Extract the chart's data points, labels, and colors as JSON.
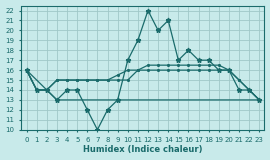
{
  "xlabel": "Humidex (Indice chaleur)",
  "bg_color": "#c8eaea",
  "grid_color": "#a0c8c8",
  "line_color": "#1a6b6b",
  "xlim": [
    -0.5,
    23.5
  ],
  "ylim": [
    10,
    22.5
  ],
  "xticks": [
    0,
    1,
    2,
    3,
    4,
    5,
    6,
    7,
    8,
    9,
    10,
    11,
    12,
    13,
    14,
    15,
    16,
    17,
    18,
    19,
    20,
    21,
    22,
    23
  ],
  "yticks": [
    10,
    11,
    12,
    13,
    14,
    15,
    16,
    17,
    18,
    19,
    20,
    21,
    22
  ],
  "line1_x": [
    0,
    1,
    2,
    3,
    4,
    5,
    6,
    7,
    8,
    9,
    10,
    11,
    12,
    13,
    14,
    15,
    16,
    17,
    18,
    19,
    20,
    21,
    22,
    23
  ],
  "line1_y": [
    16,
    14,
    14,
    15,
    15,
    15,
    15,
    15,
    15,
    15,
    15,
    16,
    16,
    16,
    16,
    16,
    16,
    16,
    16,
    16,
    16,
    15,
    14,
    13
  ],
  "line2_x": [
    0,
    1,
    2,
    3,
    4,
    5,
    6,
    7,
    8,
    9,
    10,
    11,
    12,
    13,
    14,
    15,
    16,
    17,
    18,
    19,
    20,
    21,
    22,
    23
  ],
  "line2_y": [
    16,
    14,
    14,
    15,
    15,
    15,
    15,
    15,
    15,
    15.5,
    16,
    16,
    16.5,
    16.5,
    16.5,
    16.5,
    16.5,
    16.5,
    16.5,
    16.5,
    16,
    15,
    14,
    13
  ],
  "line3_x": [
    0,
    1,
    2,
    3,
    4,
    5,
    6,
    7,
    8,
    9,
    10,
    11,
    12,
    13,
    14,
    15,
    16,
    17,
    18,
    19,
    20,
    21,
    22,
    23
  ],
  "line3_y": [
    16,
    14,
    14,
    13,
    14,
    14,
    12,
    10,
    12,
    13,
    17,
    19,
    22,
    20,
    21,
    17,
    18,
    17,
    17,
    16,
    16,
    14,
    14,
    13
  ],
  "line4_x": [
    0,
    3,
    23
  ],
  "line4_y": [
    16,
    13,
    13
  ]
}
